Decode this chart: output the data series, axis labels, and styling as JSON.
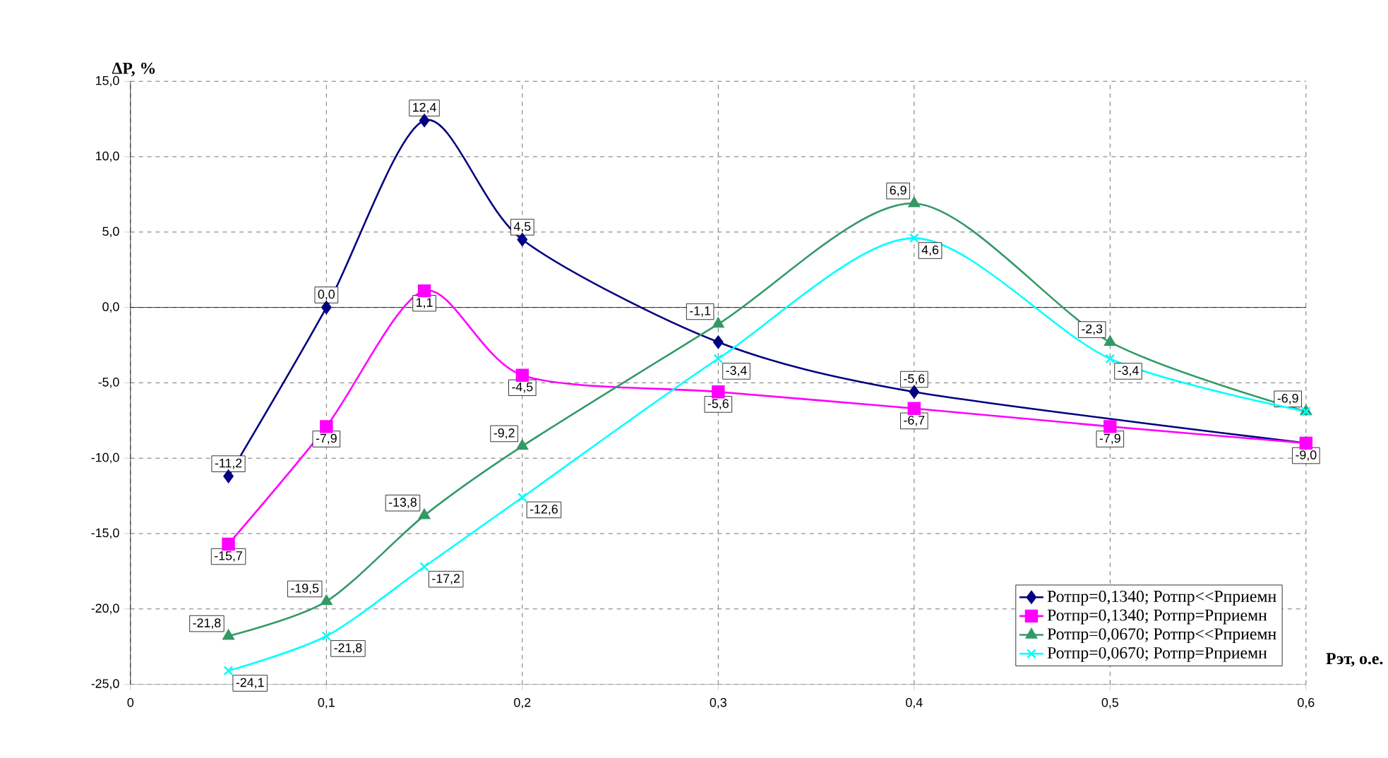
{
  "chart_data": {
    "type": "line",
    "xlabel": "Рэт, о.е.",
    "ylabel": "ΔP, %",
    "x": [
      0.05,
      0.1,
      0.15,
      0.2,
      0.3,
      0.4,
      0.5,
      0.6
    ],
    "series": [
      {
        "name": "Ротпр=0,1340; Ротпр<<Рприемн",
        "color": "#000080",
        "marker": "diamond",
        "values": [
          -11.2,
          0.0,
          12.4,
          4.5,
          -2.3,
          -5.6,
          null,
          -9.0
        ],
        "value_labels": [
          "-11,2",
          "0,0",
          "12,4",
          "4,5",
          null,
          "-5,6",
          null,
          null
        ]
      },
      {
        "name": "Ротпр=0,1340; Ротпр=Рприемн",
        "color": "#ff00ff",
        "marker": "square",
        "values": [
          -15.7,
          -7.9,
          1.1,
          -4.5,
          -5.6,
          -6.7,
          -7.9,
          -9.0
        ],
        "value_labels": [
          "-15,7",
          "-7,9",
          "1,1",
          "-4,5",
          "-5,6",
          "-6,7",
          "-7,9",
          "-9,0"
        ]
      },
      {
        "name": "Ротпр=0,0670; Ротпр<<Рприемн",
        "color": "#339966",
        "marker": "triangle",
        "values": [
          -21.8,
          -19.5,
          -13.8,
          -9.2,
          -1.1,
          6.9,
          -2.3,
          -6.9
        ],
        "value_labels": [
          "-21,8",
          "-19,5",
          "-13,8",
          "-9,2",
          "-1,1",
          "6,9",
          "-2,3",
          "-6,9"
        ]
      },
      {
        "name": "Ротпр=0,0670; Ротпр=Рприемн",
        "color": "#00ffff",
        "marker": "cross",
        "values": [
          -24.1,
          -21.8,
          -17.2,
          -12.6,
          -3.4,
          4.6,
          -3.4,
          -6.9
        ],
        "value_labels": [
          "-24,1",
          "-21,8",
          "-17,2",
          "-12,6",
          "-3,4",
          "4,6",
          "-3,4",
          null
        ]
      }
    ],
    "xlim": [
      0,
      0.6
    ],
    "ylim": [
      -25,
      15
    ],
    "xticks": [
      0,
      {
        "value": 0.1,
        "label": "0,1"
      },
      {
        "value": 0.2,
        "label": "0,2"
      },
      {
        "value": 0.3,
        "label": "0,3"
      },
      {
        "value": 0.4,
        "label": "0,4"
      },
      {
        "value": 0.5,
        "label": "0,5"
      },
      {
        "value": 0.6,
        "label": "0,6"
      }
    ],
    "yticks": [
      {
        "value": -25,
        "label": "-25,0"
      },
      {
        "value": -20,
        "label": "-20,0"
      },
      {
        "value": -15,
        "label": "-15,0"
      },
      {
        "value": -10,
        "label": "-10,0"
      },
      {
        "value": -5,
        "label": "-5,0"
      },
      {
        "value": 0,
        "label": "0,0"
      },
      {
        "value": 5,
        "label": "5,0"
      },
      {
        "value": 10,
        "label": "10,0"
      },
      {
        "value": 15,
        "label": "15,0"
      }
    ],
    "ref_lines": [
      {
        "axis": "y",
        "value": 0,
        "color": "#000000"
      }
    ],
    "grid": true,
    "legend": "bottom right"
  }
}
